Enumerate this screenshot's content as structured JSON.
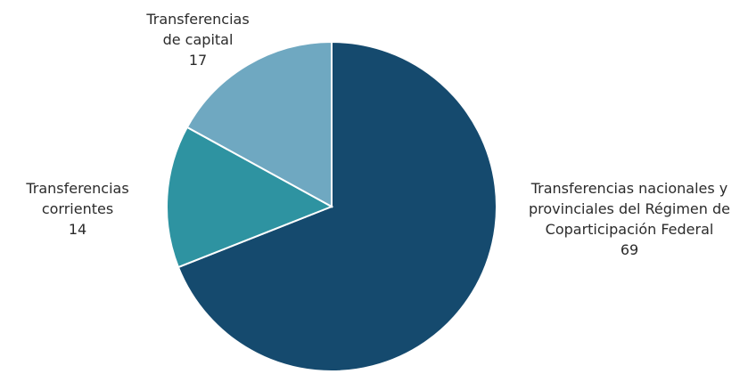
{
  "chart_data": {
    "type": "pie",
    "categories": [
      "Transferencias nacionales y provinciales del Régimen de Coparticipación Federal",
      "Transferencias corrientes",
      "Transferencias de capital"
    ],
    "values": [
      69,
      14,
      17
    ],
    "colors": [
      "#154a6e",
      "#2e93a1",
      "#6fa8c1"
    ]
  }
}
